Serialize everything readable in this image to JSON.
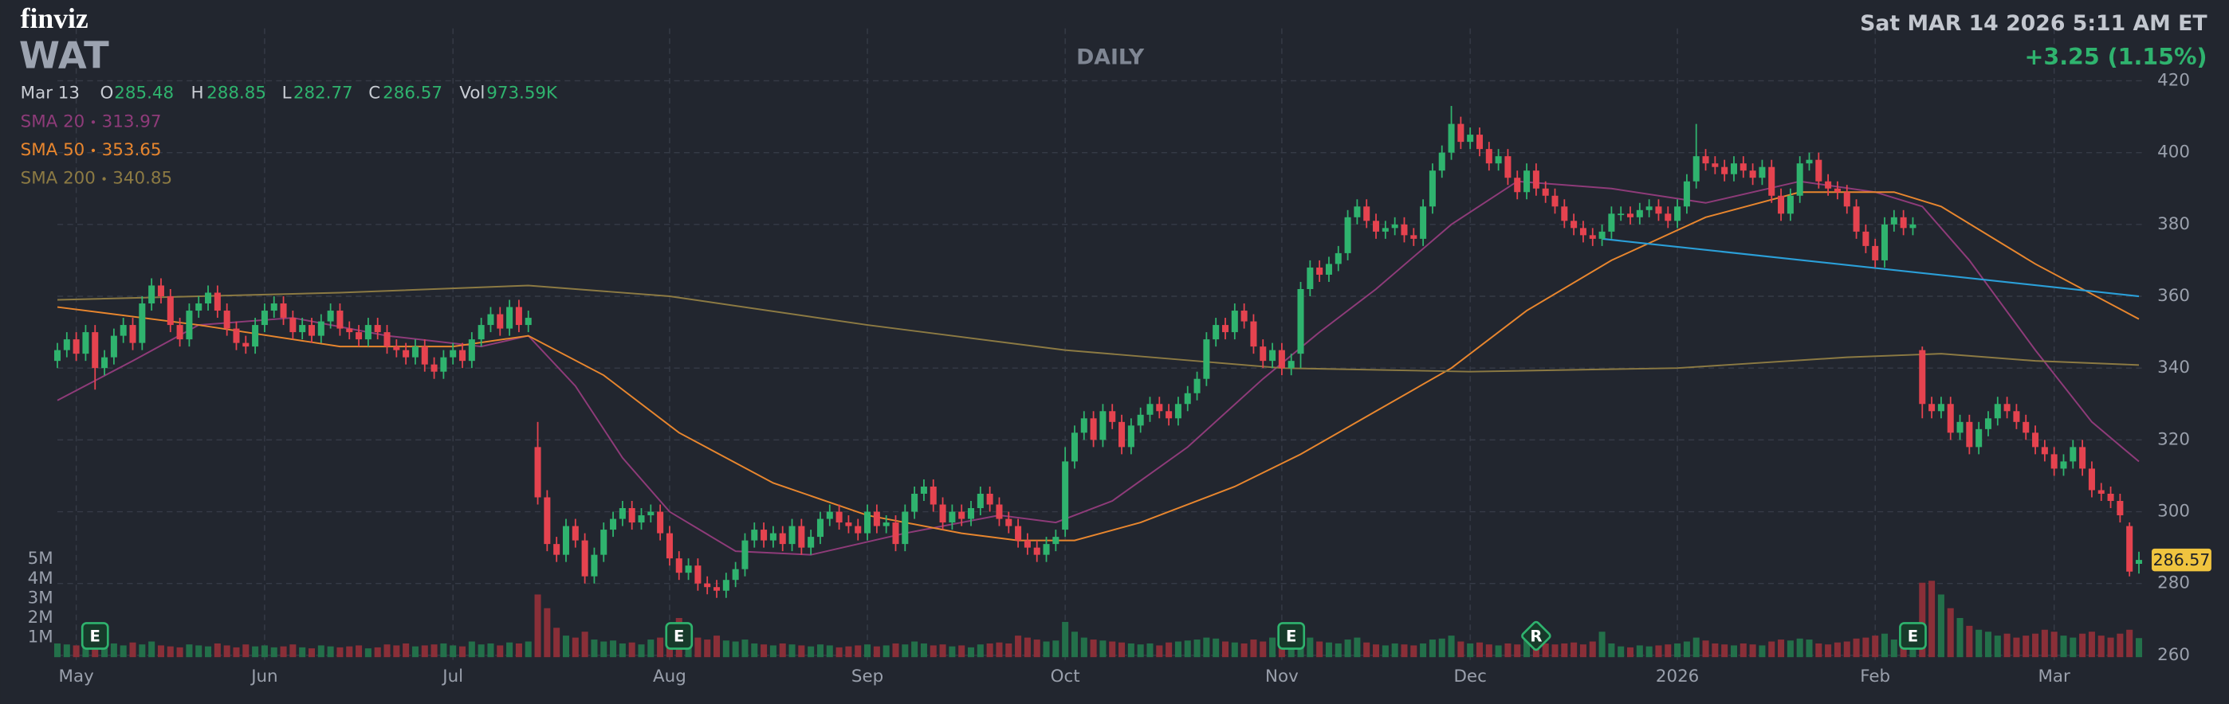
{
  "header": {
    "logo": "finviz",
    "ticker": "WAT",
    "timeframe": "DAILY",
    "timestamp": "Sat MAR 14 2026 5:11 AM ET",
    "change": "+3.25 (1.15%)",
    "date": "Mar 13",
    "open_label": "O",
    "high_label": "H",
    "low_label": "L",
    "close_label": "C",
    "volume_label": "Vol",
    "volume_text": "973.59K"
  },
  "chart_data": {
    "type": "candlestick",
    "categories": [
      null,
      null,
      "May",
      null,
      null,
      null,
      null,
      null,
      null,
      null,
      null,
      null,
      null,
      null,
      null,
      null,
      null,
      null,
      null,
      null,
      null,
      null,
      "Jun",
      null,
      null,
      null,
      null,
      null,
      null,
      null,
      null,
      null,
      null,
      null,
      null,
      null,
      null,
      null,
      null,
      null,
      null,
      null,
      "Jul",
      null,
      null,
      null,
      null,
      null,
      null,
      null,
      null,
      null,
      null,
      null,
      null,
      null,
      null,
      null,
      null,
      null,
      null,
      null,
      null,
      null,
      null,
      "Aug",
      null,
      null,
      null,
      null,
      null,
      null,
      null,
      null,
      null,
      null,
      null,
      null,
      null,
      null,
      null,
      null,
      null,
      null,
      null,
      null,
      "Sep",
      null,
      null,
      null,
      null,
      null,
      null,
      null,
      null,
      null,
      null,
      null,
      null,
      null,
      null,
      null,
      null,
      null,
      null,
      null,
      null,
      "Oct",
      null,
      null,
      null,
      null,
      null,
      null,
      null,
      null,
      null,
      null,
      null,
      null,
      null,
      null,
      null,
      null,
      null,
      null,
      null,
      null,
      null,
      null,
      "Nov",
      null,
      null,
      null,
      null,
      null,
      null,
      null,
      null,
      null,
      null,
      null,
      null,
      null,
      null,
      null,
      null,
      null,
      null,
      null,
      "Dec",
      null,
      null,
      null,
      null,
      null,
      null,
      null,
      null,
      null,
      null,
      null,
      null,
      null,
      null,
      null,
      null,
      null,
      null,
      null,
      null,
      null,
      "2026",
      null,
      null,
      null,
      null,
      null,
      null,
      null,
      null,
      null,
      null,
      null,
      null,
      null,
      null,
      null,
      null,
      null,
      null,
      null,
      null,
      "Feb",
      null,
      null,
      null,
      null,
      null,
      null,
      null,
      null,
      null,
      null,
      null,
      null,
      null,
      null,
      null,
      null,
      null,
      null,
      "Mar",
      null,
      null,
      null,
      null,
      null,
      null,
      null,
      null,
      null
    ],
    "open": [
      342,
      345,
      348,
      344,
      350,
      340,
      343,
      349,
      352,
      347,
      358,
      363,
      360,
      352,
      348,
      356,
      358,
      361,
      356,
      351,
      347,
      346,
      352,
      356,
      358,
      354,
      350,
      352,
      349,
      353,
      356,
      351,
      350,
      348,
      352,
      350,
      346,
      345,
      343,
      346,
      341,
      339,
      343,
      345,
      342,
      348,
      352,
      355,
      351,
      357,
      352,
      318,
      304,
      291,
      288,
      296,
      292,
      282,
      288,
      295,
      298,
      301,
      297,
      299,
      300,
      294,
      287,
      283,
      285,
      280,
      279,
      278,
      281,
      284,
      292,
      295,
      292,
      294,
      291,
      296,
      290,
      293,
      298,
      300,
      297,
      296,
      294,
      300,
      296,
      297,
      291,
      300,
      305,
      307,
      302,
      297,
      300,
      298,
      301,
      305,
      302,
      298,
      296,
      292,
      290,
      288,
      291,
      295,
      314,
      322,
      326,
      320,
      328,
      325,
      318,
      324,
      327,
      330,
      328,
      326,
      330,
      333,
      337,
      348,
      352,
      350,
      356,
      353,
      346,
      342,
      345,
      340,
      344,
      362,
      368,
      366,
      369,
      372,
      382,
      385,
      381,
      378,
      379,
      380,
      377,
      376,
      385,
      395,
      400,
      408,
      403,
      405,
      401,
      397,
      399,
      393,
      389,
      395,
      390,
      388,
      385,
      381,
      379,
      377,
      376,
      378,
      383,
      383,
      382,
      384,
      385,
      383,
      381,
      385,
      392,
      399,
      397,
      396,
      394,
      397,
      395,
      393,
      396,
      388,
      383,
      388,
      397,
      398,
      392,
      390,
      389,
      385,
      378,
      374,
      370,
      380,
      382,
      379,
      345,
      330,
      328,
      330,
      322,
      325,
      318,
      323,
      326,
      330,
      328,
      325,
      322,
      318,
      316,
      312,
      314,
      318,
      312,
      306,
      305,
      303,
      296,
      285.48
    ],
    "high": [
      347,
      350,
      350,
      352,
      352,
      345,
      351,
      354,
      354,
      360,
      365,
      365,
      362,
      354,
      358,
      360,
      363,
      363,
      358,
      353,
      349,
      354,
      358,
      360,
      360,
      356,
      354,
      354,
      355,
      358,
      358,
      353,
      352,
      354,
      354,
      352,
      348,
      347,
      348,
      348,
      343,
      345,
      347,
      347,
      350,
      354,
      357,
      357,
      359,
      359,
      356,
      325,
      306,
      293,
      298,
      298,
      294,
      290,
      297,
      300,
      303,
      303,
      301,
      302,
      302,
      296,
      289,
      287,
      287,
      282,
      281,
      283,
      286,
      294,
      297,
      297,
      296,
      296,
      298,
      298,
      295,
      300,
      302,
      302,
      299,
      298,
      302,
      302,
      299,
      299,
      302,
      307,
      309,
      309,
      304,
      302,
      302,
      303,
      307,
      307,
      304,
      300,
      298,
      294,
      292,
      293,
      295,
      318,
      324,
      328,
      328,
      330,
      330,
      327,
      326,
      329,
      332,
      332,
      330,
      332,
      335,
      339,
      350,
      354,
      354,
      358,
      358,
      355,
      348,
      347,
      347,
      344,
      364,
      370,
      370,
      371,
      374,
      384,
      387,
      387,
      383,
      381,
      382,
      382,
      379,
      387,
      397,
      402,
      413,
      410,
      407,
      407,
      403,
      401,
      401,
      395,
      397,
      397,
      392,
      390,
      387,
      383,
      381,
      379,
      380,
      385,
      385,
      385,
      386,
      387,
      387,
      385,
      387,
      394,
      408,
      401,
      399,
      398,
      399,
      399,
      397,
      398,
      398,
      390,
      390,
      399,
      400,
      400,
      394,
      392,
      391,
      387,
      380,
      376,
      382,
      384,
      384,
      382,
      346,
      332,
      332,
      332,
      327,
      327,
      325,
      328,
      332,
      332,
      330,
      327,
      324,
      320,
      318,
      316,
      320,
      320,
      314,
      308,
      307,
      305,
      297,
      288.85
    ],
    "low": [
      340,
      343,
      342,
      342,
      334,
      338,
      341,
      347,
      345,
      345,
      356,
      358,
      350,
      346,
      346,
      354,
      356,
      354,
      349,
      345,
      344,
      344,
      350,
      354,
      352,
      348,
      348,
      347,
      347,
      351,
      349,
      348,
      346,
      346,
      348,
      344,
      343,
      341,
      341,
      339,
      337,
      337,
      341,
      340,
      340,
      346,
      350,
      349,
      349,
      350,
      350,
      302,
      289,
      286,
      286,
      290,
      280,
      280,
      286,
      293,
      296,
      295,
      295,
      297,
      292,
      285,
      281,
      281,
      278,
      277,
      276,
      276,
      279,
      282,
      290,
      290,
      290,
      289,
      289,
      288,
      288,
      291,
      296,
      295,
      294,
      292,
      292,
      294,
      294,
      289,
      289,
      298,
      303,
      300,
      295,
      295,
      296,
      296,
      299,
      300,
      296,
      294,
      290,
      288,
      286,
      286,
      289,
      293,
      312,
      320,
      318,
      318,
      323,
      316,
      316,
      322,
      325,
      326,
      324,
      324,
      328,
      331,
      335,
      346,
      348,
      348,
      351,
      344,
      340,
      340,
      338,
      338,
      340,
      360,
      364,
      364,
      367,
      370,
      380,
      379,
      376,
      376,
      377,
      375,
      374,
      374,
      383,
      393,
      398,
      401,
      401,
      399,
      395,
      395,
      391,
      387,
      387,
      388,
      386,
      383,
      379,
      377,
      375,
      374,
      374,
      376,
      381,
      380,
      380,
      382,
      381,
      379,
      379,
      383,
      390,
      395,
      394,
      392,
      392,
      393,
      391,
      391,
      386,
      381,
      381,
      386,
      395,
      390,
      388,
      387,
      383,
      376,
      372,
      368,
      368,
      378,
      377,
      377,
      326,
      326,
      326,
      320,
      320,
      316,
      316,
      321,
      324,
      326,
      323,
      320,
      316,
      314,
      310,
      310,
      312,
      310,
      304,
      303,
      301,
      297,
      282,
      282.77
    ],
    "close": [
      345,
      348,
      344,
      350,
      340,
      343,
      349,
      352,
      347,
      358,
      363,
      360,
      352,
      348,
      356,
      358,
      361,
      356,
      351,
      347,
      346,
      352,
      356,
      358,
      354,
      350,
      352,
      349,
      353,
      356,
      351,
      350,
      348,
      352,
      350,
      346,
      345,
      343,
      346,
      341,
      339,
      343,
      345,
      342,
      348,
      352,
      355,
      351,
      357,
      352,
      354,
      304,
      291,
      288,
      296,
      292,
      282,
      288,
      295,
      298,
      301,
      297,
      299,
      300,
      294,
      287,
      283,
      285,
      280,
      279,
      278,
      281,
      284,
      292,
      295,
      292,
      294,
      291,
      296,
      290,
      293,
      298,
      300,
      297,
      296,
      294,
      300,
      296,
      297,
      291,
      300,
      305,
      307,
      302,
      297,
      300,
      298,
      301,
      305,
      302,
      298,
      296,
      292,
      290,
      288,
      291,
      293,
      314,
      322,
      326,
      320,
      328,
      325,
      318,
      324,
      327,
      330,
      328,
      326,
      330,
      333,
      337,
      348,
      352,
      350,
      356,
      353,
      346,
      342,
      345,
      340,
      342,
      362,
      368,
      366,
      369,
      372,
      382,
      385,
      381,
      378,
      379,
      380,
      377,
      376,
      385,
      395,
      400,
      408,
      403,
      405,
      401,
      397,
      399,
      393,
      389,
      395,
      390,
      388,
      385,
      381,
      379,
      377,
      376,
      378,
      383,
      383,
      382,
      384,
      385,
      383,
      381,
      385,
      392,
      399,
      397,
      396,
      394,
      397,
      395,
      393,
      396,
      388,
      383,
      388,
      397,
      398,
      392,
      390,
      389,
      385,
      378,
      374,
      370,
      380,
      382,
      379,
      380,
      330,
      328,
      330,
      322,
      325,
      318,
      323,
      326,
      330,
      328,
      325,
      322,
      318,
      316,
      312,
      314,
      318,
      312,
      306,
      305,
      303,
      299,
      283.32,
      286.57
    ],
    "volume": [
      700000,
      650000,
      600000,
      900000,
      1100000,
      800000,
      700000,
      600000,
      750000,
      650000,
      800000,
      600000,
      550000,
      500000,
      650000,
      600000,
      550000,
      700000,
      600000,
      500000,
      650000,
      550000,
      600000,
      500000,
      550000,
      650000,
      500000,
      450000,
      600000,
      550000,
      500000,
      550000,
      600000,
      450000,
      500000,
      650000,
      600000,
      700000,
      550000,
      600000,
      650000,
      700000,
      600000,
      550000,
      800000,
      650000,
      700000,
      600000,
      750000,
      700000,
      800000,
      3200000,
      2500000,
      1500000,
      1100000,
      1000000,
      1300000,
      900000,
      800000,
      850000,
      700000,
      750000,
      650000,
      900000,
      1000000,
      1600000,
      2000000,
      1300000,
      1000000,
      900000,
      1100000,
      850000,
      800000,
      900000,
      700000,
      650000,
      600000,
      700000,
      650000,
      600000,
      550000,
      650000,
      600000,
      500000,
      550000,
      600000,
      650000,
      550000,
      600000,
      700000,
      650000,
      800000,
      700000,
      600000,
      650000,
      550000,
      600000,
      500000,
      650000,
      700000,
      750000,
      700000,
      1100000,
      1000000,
      900000,
      800000,
      850000,
      1800000,
      1300000,
      1000000,
      900000,
      850000,
      800000,
      750000,
      700000,
      650000,
      700000,
      600000,
      750000,
      800000,
      850000,
      900000,
      1000000,
      950000,
      800000,
      750000,
      700000,
      900000,
      800000,
      1000000,
      1100000,
      1300000,
      1500000,
      1000000,
      800000,
      750000,
      700000,
      900000,
      1000000,
      750000,
      650000,
      600000,
      700000,
      650000,
      600000,
      700000,
      900000,
      950000,
      1100000,
      800000,
      700000,
      750000,
      650000,
      600000,
      700000,
      650000,
      900000,
      800000,
      700000,
      650000,
      700000,
      750000,
      650000,
      800000,
      1300000,
      700000,
      550000,
      500000,
      600000,
      550000,
      600000,
      650000,
      700000,
      800000,
      1000000,
      850000,
      700000,
      650000,
      600000,
      700000,
      650000,
      600000,
      800000,
      900000,
      850000,
      950000,
      900000,
      700000,
      650000,
      750000,
      800000,
      950000,
      1000000,
      1100000,
      1200000,
      900000,
      800000,
      1500000,
      3800000,
      3900000,
      3200000,
      2500000,
      2000000,
      1600000,
      1400000,
      1300000,
      1100000,
      1200000,
      1000000,
      1100000,
      1200000,
      1400000,
      1300000,
      1100000,
      1000000,
      1200000,
      1300000,
      1100000,
      1000000,
      1200000,
      1400000,
      973590
    ],
    "up_color": "#2fb36e",
    "down_color": "#e5434f",
    "volume_up_color": "#23704a",
    "volume_down_color": "#8a2f38",
    "ylim": [
      258.7,
      434.6
    ],
    "yticks": [
      260,
      280,
      300,
      320,
      340,
      360,
      380,
      400,
      420
    ],
    "grid": true,
    "volume_ylim": [
      0,
      6000000
    ],
    "volume_yticks": [
      {
        "value": 1000000,
        "label": "1M"
      },
      {
        "value": 2000000,
        "label": "2M"
      },
      {
        "value": 3000000,
        "label": "3M"
      },
      {
        "value": 4000000,
        "label": "4M"
      },
      {
        "value": 5000000,
        "label": "5M"
      }
    ],
    "last_price_color": "#f0c43f",
    "series": [
      {
        "name": "SMA 20",
        "color": "#8e3b79",
        "x": [
          0,
          8,
          15,
          25,
          35,
          45,
          50,
          55,
          60,
          65,
          72,
          80,
          90,
          100,
          106,
          112,
          120,
          128,
          134,
          140,
          148,
          155,
          165,
          175,
          185,
          193,
          198,
          203,
          210,
          216,
          221
        ],
        "values": [
          331,
          342,
          352,
          354,
          349,
          346,
          349,
          335,
          315,
          300,
          289,
          288,
          294,
          299,
          297,
          303,
          318,
          337,
          350,
          362,
          380,
          392,
          390,
          386,
          392,
          389,
          385,
          370,
          345,
          325,
          313.97
        ]
      },
      {
        "name": "SMA 50",
        "color": "#e8862e",
        "x": [
          0,
          15,
          30,
          42,
          50,
          58,
          66,
          76,
          86,
          96,
          102,
          108,
          115,
          125,
          132,
          140,
          148,
          156,
          165,
          175,
          185,
          195,
          200,
          210,
          221
        ],
        "values": [
          357,
          352,
          346,
          346,
          349,
          338,
          322,
          308,
          299,
          294,
          292,
          292,
          297,
          307,
          316,
          328,
          340,
          356,
          370,
          382,
          389,
          389,
          385,
          369,
          353.65
        ]
      },
      {
        "name": "SMA 200",
        "color": "#8c7a43",
        "x": [
          0,
          30,
          50,
          65,
          86,
          107,
          130,
          150,
          172,
          190,
          200,
          210,
          221
        ],
        "values": [
          359,
          361,
          363,
          360,
          352,
          345,
          340,
          339,
          340,
          343,
          344,
          342,
          340.85
        ]
      }
    ],
    "trendline": {
      "color": "#2b9fd8",
      "x": [
        164,
        221
      ],
      "values": [
        376,
        360
      ]
    },
    "events": [
      {
        "index": 4,
        "label": "E",
        "shape": "square"
      },
      {
        "index": 66,
        "label": "E",
        "shape": "square"
      },
      {
        "index": 131,
        "label": "E",
        "shape": "square"
      },
      {
        "index": 157,
        "label": "R",
        "shape": "diamond"
      },
      {
        "index": 197,
        "label": "E",
        "shape": "square"
      }
    ]
  }
}
